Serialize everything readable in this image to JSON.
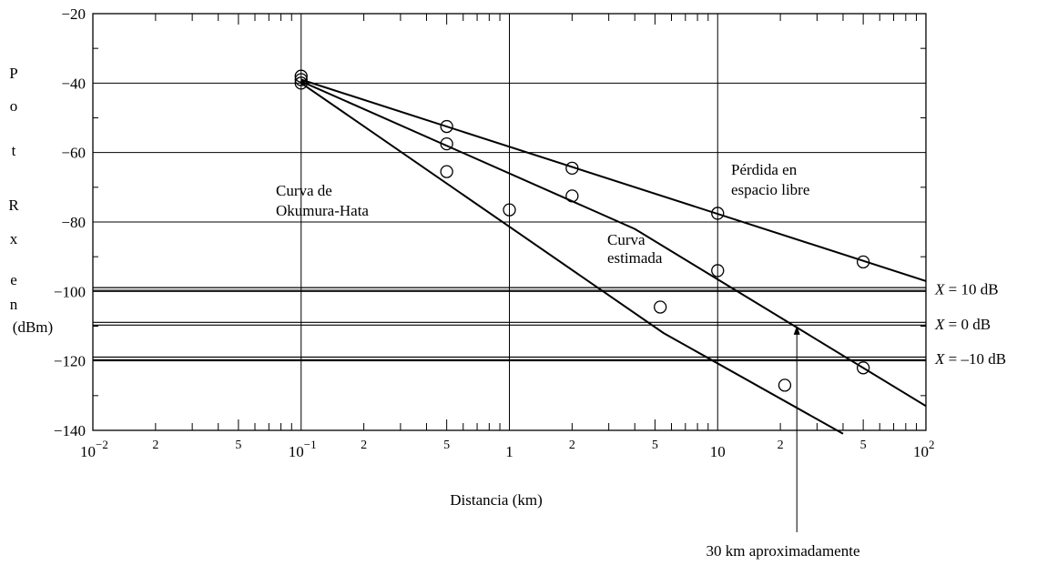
{
  "chart_data": {
    "type": "line",
    "title": "",
    "xlabel": "Distancia (km)",
    "ylabel_chars": [
      "P",
      "o",
      "t",
      "R",
      "x",
      "e",
      "n"
    ],
    "ylabel_unit": "(dBm)",
    "xscale": "log",
    "xlim": [
      0.01,
      100
    ],
    "ylim": [
      -140,
      -20
    ],
    "grid": true,
    "x_ticks": [
      {
        "value": 0.01,
        "base": "10",
        "exp": "−2"
      },
      {
        "value": 0.1,
        "base": "10",
        "exp": "−1"
      },
      {
        "value": 1,
        "base": "1",
        "exp": ""
      },
      {
        "value": 10,
        "base": "10",
        "exp": ""
      },
      {
        "value": 100,
        "base": "10",
        "exp": "2"
      }
    ],
    "x_minor_ticks": [
      {
        "value": 0.02,
        "label": "2"
      },
      {
        "value": 0.05,
        "label": "5"
      },
      {
        "value": 0.2,
        "label": "2"
      },
      {
        "value": 0.5,
        "label": "5"
      },
      {
        "value": 2,
        "label": "2"
      },
      {
        "value": 5,
        "label": "5"
      },
      {
        "value": 20,
        "label": "2"
      },
      {
        "value": 50,
        "label": "5"
      }
    ],
    "y_ticks": [
      {
        "value": -20,
        "label": "−20"
      },
      {
        "value": -40,
        "label": "−40"
      },
      {
        "value": -60,
        "label": "−60"
      },
      {
        "value": -80,
        "label": "−80"
      },
      {
        "value": -100,
        "label": "−100"
      },
      {
        "value": -120,
        "label": "−120"
      },
      {
        "value": -140,
        "label": "−140"
      }
    ],
    "series": [
      {
        "name": "Pérdida en espacio libre",
        "line": [
          [
            0.1,
            -39
          ],
          [
            100,
            -97
          ]
        ],
        "markers": [
          [
            0.1,
            -38
          ],
          [
            0.5,
            -52.5
          ],
          [
            2,
            -64.5
          ],
          [
            10,
            -77.5
          ],
          [
            50,
            -91.5
          ]
        ]
      },
      {
        "name": "Curva estimada",
        "line": [
          [
            0.1,
            -39.5
          ],
          [
            4,
            -82
          ],
          [
            100,
            -133
          ]
        ],
        "markers": [
          [
            0.1,
            -39
          ],
          [
            0.5,
            -57.5
          ],
          [
            2,
            -72.5
          ],
          [
            10,
            -94
          ],
          [
            50,
            -122
          ]
        ]
      },
      {
        "name": "Curva de Okumura-Hata",
        "line": [
          [
            0.1,
            -40
          ],
          [
            5.5,
            -112
          ],
          [
            40,
            -141
          ]
        ],
        "markers": [
          [
            0.1,
            -40
          ],
          [
            0.5,
            -65.5
          ],
          [
            1,
            -76.5
          ],
          [
            5.3,
            -104.5
          ],
          [
            21,
            -127
          ]
        ]
      }
    ],
    "thresholds": [
      {
        "value": -99.3,
        "label_var": "X",
        "label_rest": " = 10 dB"
      },
      {
        "value": -109.3,
        "label_var": "X",
        "label_rest": " = 0 dB"
      },
      {
        "value": -119.3,
        "label_var": "X",
        "label_rest": " = –10 dB"
      }
    ],
    "annotations": [
      {
        "id": "free-space-label",
        "lines": [
          "Pérdida en",
          "espacio libre"
        ]
      },
      {
        "id": "okumura-label",
        "lines": [
          "Curva de",
          "Okumura-Hata"
        ]
      },
      {
        "id": "estimated-label",
        "lines": [
          "Curva",
          "estimada"
        ]
      },
      {
        "id": "arrow-label",
        "lines": [
          "30 km aproximadamente"
        ],
        "target": [
          24,
          -109.3
        ]
      }
    ]
  }
}
